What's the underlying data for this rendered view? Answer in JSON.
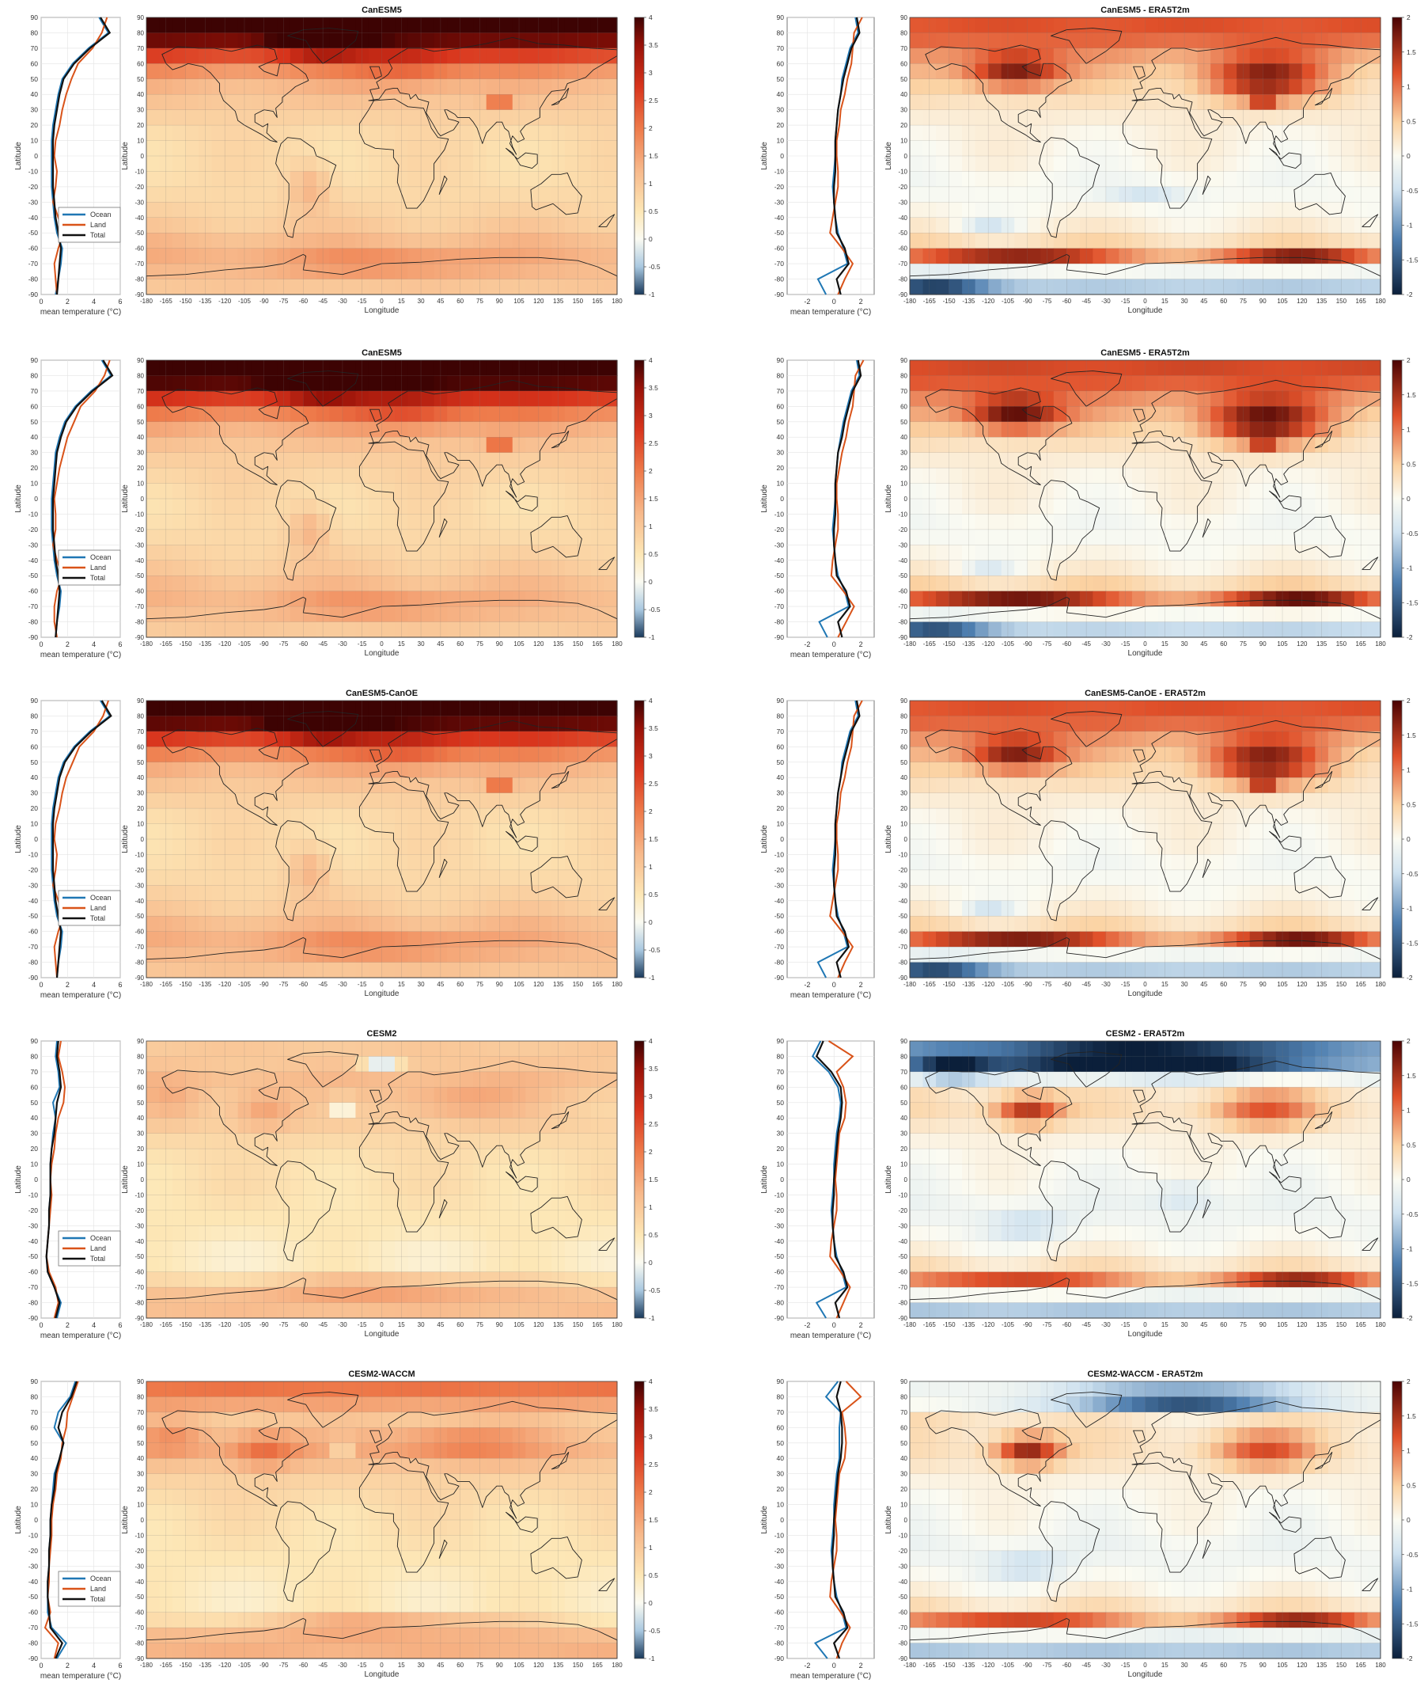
{
  "figure": {
    "profile_xlabel": "mean temperature (°C)",
    "ylabel": "Latitude",
    "xlabel": "Longitude",
    "legend_items": [
      "Ocean",
      "Land",
      "Total"
    ],
    "lat_ticks": [
      90,
      80,
      70,
      60,
      50,
      40,
      30,
      20,
      10,
      0,
      -10,
      -20,
      -30,
      -40,
      -50,
      -60,
      -70,
      -80,
      -90
    ],
    "lon_ticks": [
      -180,
      -165,
      -150,
      -135,
      -120,
      -105,
      -90,
      -75,
      -60,
      -45,
      -30,
      -15,
      0,
      15,
      30,
      45,
      60,
      75,
      90,
      105,
      120,
      135,
      150,
      165,
      180
    ],
    "colors": {
      "ocean": "#1f77b4",
      "land": "#d95319",
      "total": "#111111",
      "land_mass": "#c4c4c4"
    }
  },
  "panels": [
    {
      "id": "CanESM5_a",
      "type": "heatmap",
      "title": "CanESM5",
      "diff_title": "CanESM5 - ERA5T2m",
      "colorbar_ticks": [
        "4",
        "3.5",
        "3",
        "2.5",
        "2",
        "1.5",
        "1",
        "0.5",
        "0",
        "-0.5",
        "-1"
      ],
      "diff_colorbar_ticks": [
        "2",
        "1.5",
        "1",
        "0.5",
        "0",
        "-0.5",
        "-1",
        "-1.5",
        "-2"
      ],
      "profile_xticks": [
        "0",
        "2",
        "4",
        "6"
      ],
      "diff_profile_xticks": [
        "-2",
        "0",
        "2"
      ],
      "ranges": {
        "warming": [
          -1,
          4
        ],
        "diff": [
          -2,
          2
        ]
      },
      "profiles": {
        "lat": [
          90,
          80,
          70,
          60,
          50,
          40,
          30,
          20,
          10,
          0,
          -10,
          -20,
          -30,
          -40,
          -50,
          -60,
          -70,
          -80,
          -90
        ],
        "ocean": [
          4.4,
          5.1,
          3.6,
          2.4,
          1.6,
          1.3,
          1.1,
          0.9,
          0.8,
          0.8,
          0.8,
          0.8,
          0.9,
          1.0,
          1.2,
          1.6,
          1.5,
          1.3,
          1.1
        ],
        "land": [
          5.0,
          4.6,
          3.9,
          2.8,
          2.3,
          1.9,
          1.6,
          1.4,
          1.1,
          1.0,
          1.2,
          1.1,
          0.9,
          1.3,
          1.7,
          1.3,
          1.0,
          1.1,
          1.2
        ],
        "total": [
          4.5,
          5.2,
          3.7,
          2.5,
          1.7,
          1.4,
          1.2,
          1.0,
          0.9,
          0.9,
          0.9,
          0.9,
          1.0,
          1.1,
          1.3,
          1.5,
          1.4,
          1.3,
          1.2
        ]
      },
      "diff_profiles": {
        "lat": [
          90,
          80,
          70,
          60,
          50,
          40,
          30,
          20,
          10,
          0,
          -10,
          -20,
          -30,
          -40,
          -50,
          -60,
          -70,
          -80,
          -90
        ],
        "ocean": [
          1.6,
          1.8,
          1.2,
          0.9,
          0.6,
          0.5,
          0.3,
          0.2,
          0.1,
          0.1,
          0.0,
          -0.1,
          0.0,
          0.1,
          0.3,
          0.7,
          1.0,
          -1.2,
          -0.6
        ],
        "land": [
          2.1,
          1.5,
          1.4,
          1.3,
          1.0,
          0.8,
          0.5,
          0.4,
          0.2,
          0.2,
          0.3,
          0.3,
          0.1,
          -0.1,
          -0.3,
          0.6,
          1.4,
          0.8,
          0.3
        ],
        "total": [
          1.7,
          1.9,
          1.3,
          1.0,
          0.7,
          0.5,
          0.3,
          0.2,
          0.1,
          0.1,
          0.1,
          0.0,
          0.0,
          0.1,
          0.2,
          0.8,
          1.1,
          0.2,
          0.5
        ]
      }
    },
    {
      "id": "CanESM5_b",
      "type": "heatmap",
      "title": "CanESM5",
      "diff_title": "CanESM5 - ERA5T2m",
      "colorbar_ticks": [
        "4",
        "3.5",
        "3",
        "2.5",
        "2",
        "1.5",
        "1",
        "0.5",
        "0",
        "-0.5",
        "-1"
      ],
      "diff_colorbar_ticks": [
        "2",
        "1.5",
        "1",
        "0.5",
        "0",
        "-0.5",
        "-1",
        "-1.5",
        "-2"
      ],
      "profile_xticks": [
        "0",
        "2",
        "4",
        "6"
      ],
      "diff_profile_xticks": [
        "-2",
        "0",
        "2"
      ],
      "ranges": {
        "warming": [
          -1,
          4
        ],
        "diff": [
          -2,
          2
        ]
      },
      "profiles": {
        "lat": [
          90,
          80,
          70,
          60,
          50,
          40,
          30,
          20,
          10,
          0,
          -10,
          -20,
          -30,
          -40,
          -50,
          -60,
          -70,
          -80,
          -90
        ],
        "ocean": [
          4.6,
          5.3,
          3.8,
          2.6,
          1.8,
          1.4,
          1.1,
          1.0,
          0.9,
          0.8,
          0.8,
          0.8,
          0.9,
          1.0,
          1.2,
          1.5,
          1.4,
          1.2,
          1.1
        ],
        "land": [
          5.2,
          4.8,
          4.1,
          3.0,
          2.5,
          2.0,
          1.7,
          1.4,
          1.2,
          1.0,
          1.1,
          1.1,
          0.9,
          1.2,
          1.6,
          1.2,
          1.0,
          1.0,
          1.2
        ],
        "total": [
          4.7,
          5.4,
          3.9,
          2.7,
          1.9,
          1.5,
          1.2,
          1.1,
          1.0,
          0.9,
          0.9,
          0.9,
          1.0,
          1.1,
          1.3,
          1.4,
          1.3,
          1.2,
          1.1
        ]
      },
      "diff_profiles": {
        "lat": [
          90,
          80,
          70,
          60,
          50,
          40,
          30,
          20,
          10,
          0,
          -10,
          -20,
          -30,
          -40,
          -50,
          -60,
          -70,
          -80,
          -90
        ],
        "ocean": [
          1.7,
          1.9,
          1.3,
          1.0,
          0.7,
          0.5,
          0.3,
          0.2,
          0.1,
          0.1,
          0.0,
          -0.1,
          0.0,
          0.1,
          0.3,
          0.8,
          1.1,
          -1.1,
          -0.5
        ],
        "land": [
          2.2,
          1.6,
          1.5,
          1.4,
          1.1,
          0.9,
          0.6,
          0.4,
          0.2,
          0.2,
          0.3,
          0.3,
          0.1,
          -0.1,
          -0.2,
          0.7,
          1.5,
          0.9,
          0.3
        ],
        "total": [
          1.8,
          2.0,
          1.4,
          1.1,
          0.8,
          0.6,
          0.3,
          0.2,
          0.1,
          0.1,
          0.1,
          0.0,
          0.0,
          0.1,
          0.2,
          0.9,
          1.2,
          0.3,
          0.6
        ]
      }
    },
    {
      "id": "CanESM5-CanOE",
      "type": "heatmap",
      "title": "CanESM5-CanOE",
      "diff_title": "CanESM5-CanOE - ERA5T2m",
      "colorbar_ticks": [
        "4",
        "3.5",
        "3",
        "2.5",
        "2",
        "1.5",
        "1",
        "0.5",
        "0",
        "-0.5",
        "-1"
      ],
      "diff_colorbar_ticks": [
        "2",
        "1.5",
        "1",
        "0.5",
        "0",
        "-0.5",
        "-1",
        "-1.5",
        "-2"
      ],
      "profile_xticks": [
        "0",
        "2",
        "4",
        "6"
      ],
      "diff_profile_xticks": [
        "-2",
        "0",
        "2"
      ],
      "ranges": {
        "warming": [
          -1,
          4
        ],
        "diff": [
          -2,
          2
        ]
      },
      "profiles": {
        "lat": [
          90,
          80,
          70,
          60,
          50,
          40,
          30,
          20,
          10,
          0,
          -10,
          -20,
          -30,
          -40,
          -50,
          -60,
          -70,
          -80,
          -90
        ],
        "ocean": [
          4.5,
          5.2,
          3.7,
          2.5,
          1.7,
          1.3,
          1.1,
          0.9,
          0.8,
          0.8,
          0.8,
          0.8,
          0.9,
          1.0,
          1.2,
          1.6,
          1.5,
          1.3,
          1.2
        ],
        "land": [
          5.1,
          4.7,
          4.0,
          2.9,
          2.4,
          1.9,
          1.6,
          1.4,
          1.1,
          1.0,
          1.2,
          1.1,
          0.9,
          1.3,
          1.7,
          1.3,
          1.0,
          1.1,
          1.2
        ],
        "total": [
          4.6,
          5.3,
          3.8,
          2.6,
          1.8,
          1.4,
          1.2,
          1.0,
          0.9,
          0.9,
          0.9,
          0.9,
          1.0,
          1.1,
          1.3,
          1.5,
          1.4,
          1.3,
          1.2
        ]
      },
      "diff_profiles": {
        "lat": [
          90,
          80,
          70,
          60,
          50,
          40,
          30,
          20,
          10,
          0,
          -10,
          -20,
          -30,
          -40,
          -50,
          -60,
          -70,
          -80,
          -90
        ],
        "ocean": [
          1.6,
          1.8,
          1.2,
          0.9,
          0.6,
          0.5,
          0.3,
          0.2,
          0.1,
          0.1,
          0.0,
          -0.1,
          0.0,
          0.1,
          0.3,
          0.7,
          1.0,
          -1.2,
          -0.6
        ],
        "land": [
          2.1,
          1.5,
          1.4,
          1.3,
          1.0,
          0.8,
          0.5,
          0.4,
          0.2,
          0.2,
          0.3,
          0.3,
          0.1,
          -0.1,
          -0.3,
          0.6,
          1.4,
          0.8,
          0.3
        ],
        "total": [
          1.7,
          1.9,
          1.3,
          1.0,
          0.7,
          0.5,
          0.3,
          0.2,
          0.1,
          0.1,
          0.1,
          0.0,
          0.0,
          0.1,
          0.2,
          0.8,
          1.1,
          0.2,
          0.5
        ]
      }
    },
    {
      "id": "CESM2",
      "type": "heatmap",
      "title": "CESM2",
      "diff_title": "CESM2 - ERA5T2m",
      "colorbar_ticks": [
        "4",
        "3.5",
        "3",
        "2.5",
        "2",
        "1.5",
        "1",
        "0.5",
        "0",
        "-0.5",
        "-1"
      ],
      "diff_colorbar_ticks": [
        "2",
        "1.5",
        "1",
        "0.5",
        "0",
        "-0.5",
        "-1",
        "-1.5",
        "-2"
      ],
      "profile_xticks": [
        "0",
        "2",
        "4",
        "6"
      ],
      "diff_profile_xticks": [
        "-2",
        "0",
        "2"
      ],
      "ranges": {
        "warming": [
          -1,
          4
        ],
        "diff": [
          -2,
          2
        ]
      },
      "profiles": {
        "lat": [
          90,
          80,
          70,
          60,
          50,
          40,
          30,
          20,
          10,
          0,
          -10,
          -20,
          -30,
          -40,
          -50,
          -60,
          -70,
          -80,
          -90
        ],
        "ocean": [
          1.2,
          1.1,
          1.3,
          1.4,
          0.9,
          1.1,
          0.9,
          0.8,
          0.7,
          0.7,
          0.7,
          0.6,
          0.6,
          0.5,
          0.4,
          0.5,
          1.0,
          1.5,
          1.2
        ],
        "land": [
          1.5,
          1.3,
          1.6,
          1.8,
          1.7,
          1.3,
          1.1,
          1.0,
          0.8,
          0.7,
          0.8,
          0.7,
          0.6,
          0.5,
          0.4,
          0.6,
          1.1,
          1.3,
          1.0
        ],
        "total": [
          1.3,
          1.2,
          1.4,
          1.5,
          1.2,
          1.1,
          1.0,
          0.8,
          0.7,
          0.7,
          0.7,
          0.6,
          0.6,
          0.5,
          0.4,
          0.5,
          1.0,
          1.4,
          1.1
        ]
      },
      "diff_profiles": {
        "lat": [
          90,
          80,
          70,
          60,
          50,
          40,
          30,
          20,
          10,
          0,
          -10,
          -20,
          -30,
          -40,
          -50,
          -60,
          -70,
          -80,
          -90
        ],
        "ocean": [
          -1.0,
          -1.6,
          -0.4,
          0.3,
          0.5,
          0.4,
          0.2,
          0.1,
          0.0,
          0.0,
          -0.1,
          -0.2,
          -0.1,
          0.0,
          0.2,
          0.6,
          0.9,
          -1.3,
          -0.6
        ],
        "land": [
          -0.4,
          1.4,
          0.2,
          0.7,
          0.9,
          0.8,
          0.4,
          0.3,
          0.2,
          0.1,
          0.2,
          0.2,
          0.0,
          -0.2,
          -0.3,
          0.5,
          1.2,
          0.7,
          0.2
        ],
        "total": [
          -0.8,
          -1.3,
          -0.2,
          0.5,
          0.6,
          0.5,
          0.3,
          0.2,
          0.1,
          0.0,
          0.0,
          -0.1,
          -0.1,
          0.0,
          0.1,
          0.7,
          1.0,
          0.1,
          0.4
        ]
      }
    },
    {
      "id": "CESM2-WACCM",
      "type": "heatmap",
      "title": "CESM2-WACCM",
      "diff_title": "CESM2-WACCM - ERA5T2m",
      "colorbar_ticks": [
        "4",
        "3.5",
        "3",
        "2.5",
        "2",
        "1.5",
        "1",
        "0.5",
        "0",
        "-0.5",
        "-1"
      ],
      "diff_colorbar_ticks": [
        "2",
        "1.5",
        "1",
        "0.5",
        "0",
        "-0.5",
        "-1",
        "-1.5",
        "-2"
      ],
      "profile_xticks": [
        "0",
        "2",
        "4",
        "6"
      ],
      "diff_profile_xticks": [
        "-2",
        "0",
        "2"
      ],
      "ranges": {
        "warming": [
          -1,
          4
        ],
        "diff": [
          -2,
          2
        ]
      },
      "profiles": {
        "lat": [
          90,
          80,
          70,
          60,
          50,
          40,
          30,
          20,
          10,
          0,
          -10,
          -20,
          -30,
          -40,
          -50,
          -60,
          -70,
          -80,
          -90
        ],
        "ocean": [
          2.6,
          2.2,
          1.3,
          1.0,
          1.7,
          1.4,
          1.0,
          0.9,
          0.8,
          0.7,
          0.7,
          0.6,
          0.6,
          0.5,
          0.5,
          0.5,
          0.8,
          1.9,
          1.2
        ],
        "land": [
          2.8,
          2.4,
          2.0,
          1.9,
          1.6,
          1.5,
          1.2,
          1.1,
          0.9,
          0.8,
          0.8,
          0.7,
          0.6,
          0.6,
          0.5,
          0.7,
          0.3,
          1.3,
          1.0
        ],
        "total": [
          2.7,
          2.3,
          1.6,
          1.3,
          1.7,
          1.4,
          1.1,
          1.0,
          0.8,
          0.7,
          0.7,
          0.6,
          0.6,
          0.5,
          0.5,
          0.6,
          0.7,
          1.6,
          1.1
        ]
      },
      "diff_profiles": {
        "lat": [
          90,
          80,
          70,
          60,
          50,
          40,
          30,
          20,
          10,
          0,
          -10,
          -20,
          -30,
          -40,
          -50,
          -60,
          -70,
          -80,
          -90
        ],
        "ocean": [
          0.3,
          -0.6,
          0.5,
          0.4,
          0.4,
          0.4,
          0.2,
          0.1,
          0.0,
          0.0,
          -0.1,
          -0.2,
          -0.1,
          0.0,
          0.2,
          0.6,
          0.9,
          -1.4,
          -0.5
        ],
        "land": [
          0.9,
          2.0,
          0.6,
          0.8,
          0.9,
          0.8,
          0.4,
          0.3,
          0.2,
          0.1,
          0.2,
          0.2,
          0.0,
          -0.2,
          -0.3,
          0.5,
          1.2,
          0.6,
          0.2
        ],
        "total": [
          0.5,
          0.2,
          0.5,
          0.6,
          0.6,
          0.5,
          0.3,
          0.2,
          0.1,
          0.0,
          0.0,
          -0.1,
          -0.1,
          0.0,
          0.1,
          0.7,
          1.0,
          0.0,
          0.4
        ]
      }
    }
  ]
}
